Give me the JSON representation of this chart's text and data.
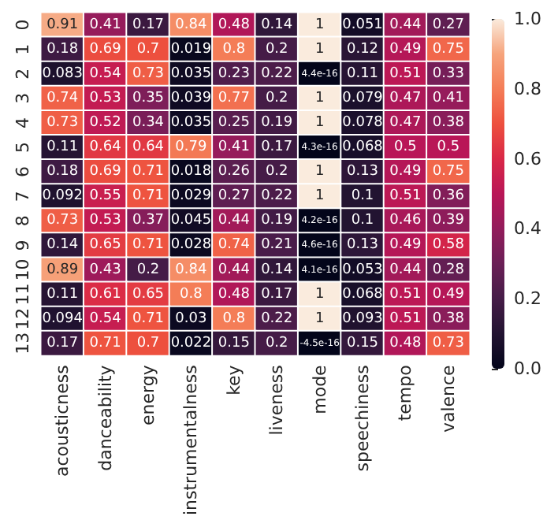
{
  "chart_data": {
    "type": "heatmap",
    "categories": [
      "acousticness",
      "danceability",
      "energy",
      "instrumentalness",
      "key",
      "liveness",
      "mode",
      "speechiness",
      "tempo",
      "valence"
    ],
    "y_categories": [
      "0",
      "1",
      "2",
      "3",
      "4",
      "5",
      "6",
      "7",
      "8",
      "9",
      "10",
      "11",
      "12",
      "13"
    ],
    "cells": [
      [
        0.91,
        0.41,
        0.17,
        0.84,
        0.48,
        0.14,
        1,
        0.051,
        0.44,
        0.27
      ],
      [
        0.18,
        0.69,
        0.7,
        0.019,
        0.8,
        0.2,
        1,
        0.12,
        0.49,
        0.75
      ],
      [
        0.083,
        0.54,
        0.73,
        0.035,
        0.23,
        0.22,
        4.4e-16,
        0.11,
        0.51,
        0.33
      ],
      [
        0.74,
        0.53,
        0.35,
        0.039,
        0.77,
        0.2,
        1,
        0.079,
        0.47,
        0.41
      ],
      [
        0.73,
        0.52,
        0.34,
        0.035,
        0.25,
        0.19,
        1,
        0.078,
        0.47,
        0.38
      ],
      [
        0.11,
        0.64,
        0.64,
        0.79,
        0.41,
        0.17,
        4.3e-16,
        0.068,
        0.5,
        0.5
      ],
      [
        0.18,
        0.69,
        0.71,
        0.018,
        0.26,
        0.2,
        1,
        0.13,
        0.49,
        0.75
      ],
      [
        0.092,
        0.55,
        0.71,
        0.029,
        0.27,
        0.22,
        1,
        0.1,
        0.51,
        0.36
      ],
      [
        0.73,
        0.53,
        0.37,
        0.045,
        0.44,
        0.19,
        4.2e-16,
        0.1,
        0.46,
        0.39
      ],
      [
        0.14,
        0.65,
        0.71,
        0.028,
        0.74,
        0.21,
        4.6e-16,
        0.13,
        0.49,
        0.58
      ],
      [
        0.89,
        0.43,
        0.2,
        0.84,
        0.44,
        0.14,
        4.1e-16,
        0.053,
        0.44,
        0.28
      ],
      [
        0.11,
        0.61,
        0.65,
        0.8,
        0.48,
        0.17,
        1,
        0.068,
        0.51,
        0.49
      ],
      [
        0.094,
        0.54,
        0.71,
        0.03,
        0.8,
        0.22,
        1,
        0.093,
        0.51,
        0.38
      ],
      [
        0.17,
        0.71,
        0.7,
        0.022,
        0.15,
        0.2,
        -4.5e-16,
        0.15,
        0.48,
        0.73
      ]
    ],
    "clim": [
      0,
      1
    ],
    "cticks": [
      {
        "value": 0,
        "label": "0.0"
      },
      {
        "value": 0.2,
        "label": "0.2"
      },
      {
        "value": 0.4,
        "label": "0.4"
      },
      {
        "value": 0.6,
        "label": "0.6"
      },
      {
        "value": 0.8,
        "label": "0.8"
      },
      {
        "value": 1,
        "label": "1.0"
      }
    ],
    "data_labels": true
  }
}
